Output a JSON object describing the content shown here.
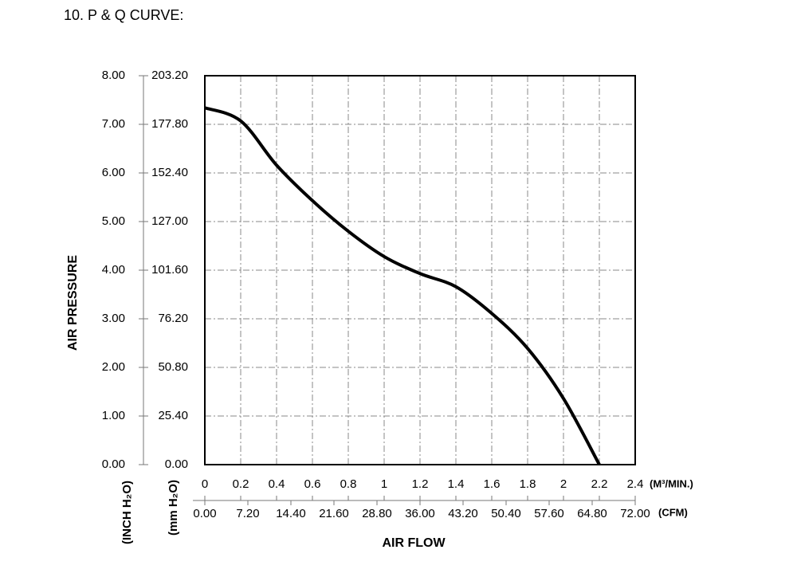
{
  "chart_data": {
    "type": "line",
    "title": "10. P & Q CURVE:",
    "y_label": "AIR PRESSURE",
    "x_label": "AIR FLOW",
    "xlim": [
      0,
      2.4
    ],
    "xticks": [
      0,
      0.2,
      0.4,
      0.6,
      0.8,
      1,
      1.2,
      1.4,
      1.6,
      1.8,
      2,
      2.2,
      2.4
    ],
    "x_unit": "(M³/MIN.)",
    "x2lim": [
      0,
      72
    ],
    "x2ticks": [
      {
        "value": 0,
        "label": "0.00"
      },
      {
        "value": 7.2,
        "label": "7.20"
      },
      {
        "value": 14.4,
        "label": "14.40"
      },
      {
        "value": 21.6,
        "label": "21.60"
      },
      {
        "value": 28.8,
        "label": "28.80"
      },
      {
        "value": 36,
        "label": "36.00"
      },
      {
        "value": 43.2,
        "label": "43.20"
      },
      {
        "value": 50.4,
        "label": "50.40"
      },
      {
        "value": 57.6,
        "label": "57.60"
      },
      {
        "value": 64.8,
        "label": "64.80"
      },
      {
        "value": 72,
        "label": "72.00"
      }
    ],
    "x2_unit": "(CFM)",
    "ylim": [
      0,
      8
    ],
    "yticks": [
      {
        "value": 0,
        "label": "0.00"
      },
      {
        "value": 1,
        "label": "1.00"
      },
      {
        "value": 2,
        "label": "2.00"
      },
      {
        "value": 3,
        "label": "3.00"
      },
      {
        "value": 4,
        "label": "4.00"
      },
      {
        "value": 5,
        "label": "5.00"
      },
      {
        "value": 6,
        "label": "6.00"
      },
      {
        "value": 7,
        "label": "7.00"
      },
      {
        "value": 8,
        "label": "8.00"
      }
    ],
    "y_unit": "(INCH H₂O)",
    "y2lim": [
      0,
      203.2
    ],
    "y2ticks": [
      {
        "value": 0,
        "label": "0.00"
      },
      {
        "value": 25.4,
        "label": "25.40"
      },
      {
        "value": 50.8,
        "label": "50.80"
      },
      {
        "value": 76.2,
        "label": "76.20"
      },
      {
        "value": 101.6,
        "label": "101.60"
      },
      {
        "value": 127,
        "label": "127.00"
      },
      {
        "value": 152.4,
        "label": "152.40"
      },
      {
        "value": 177.8,
        "label": "177.80"
      },
      {
        "value": 203.2,
        "label": "203.20"
      }
    ],
    "y2_unit": "(mm H₂O)",
    "grid": true,
    "series": [
      {
        "color": "#000000",
        "x": [
          0,
          0.2,
          0.4,
          0.6,
          0.8,
          1.0,
          1.2,
          1.4,
          1.6,
          1.8,
          2.0,
          2.2
        ],
        "values": [
          7.34,
          7.07,
          6.16,
          5.43,
          4.8,
          4.28,
          3.93,
          3.66,
          3.11,
          2.39,
          1.36,
          0
        ]
      }
    ]
  }
}
